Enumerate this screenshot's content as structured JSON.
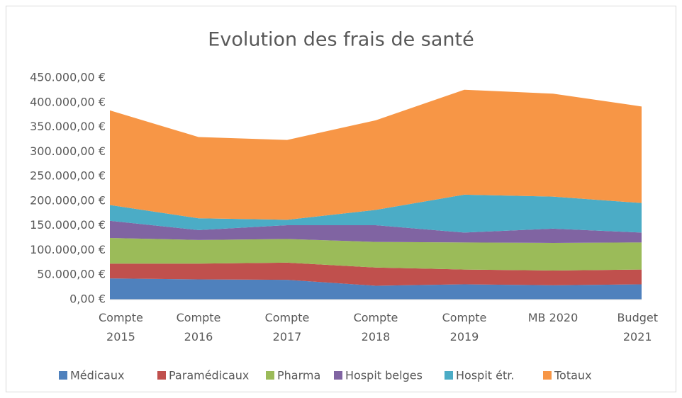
{
  "chart_data": {
    "type": "stacked_area",
    "title": "Evolution des frais de santé",
    "categories": [
      "Compte\n2015",
      "Compte\n2016",
      "Compte\n2017",
      "Compte\n2018",
      "Compte\n2019",
      "MB 2020",
      "Budget\n2021"
    ],
    "series": [
      {
        "name": "Médicaux",
        "color": "#4f81bd",
        "values": [
          43000,
          41000,
          40000,
          28000,
          31000,
          29000,
          31000
        ]
      },
      {
        "name": "Paramédicaux",
        "color": "#c0504d",
        "values": [
          30000,
          32000,
          35000,
          37000,
          30000,
          30000,
          30000
        ]
      },
      {
        "name": "Pharma",
        "color": "#9bbb59",
        "values": [
          52000,
          48000,
          48000,
          52000,
          55000,
          56000,
          55000
        ]
      },
      {
        "name": "Hospit belges",
        "color": "#8064a2",
        "values": [
          35000,
          20000,
          28000,
          34000,
          20000,
          29000,
          20000
        ]
      },
      {
        "name": "Hospit étr.",
        "color": "#4bacc6",
        "values": [
          32000,
          24000,
          11000,
          31000,
          77000,
          65000,
          60000
        ]
      },
      {
        "name": "Totaux",
        "color": "#f79646",
        "values": [
          192000,
          165000,
          162000,
          182000,
          213000,
          209000,
          196000
        ]
      }
    ],
    "ylim": [
      0,
      450000
    ],
    "yticks": [
      {
        "value": 0,
        "label": "0,00 €"
      },
      {
        "value": 50000,
        "label": "50.000,00 €"
      },
      {
        "value": 100000,
        "label": "100.000,00 €"
      },
      {
        "value": 150000,
        "label": "150.000,00 €"
      },
      {
        "value": 200000,
        "label": "200.000,00 €"
      },
      {
        "value": 250000,
        "label": "250.000,00 €"
      },
      {
        "value": 300000,
        "label": "300.000,00 €"
      },
      {
        "value": 350000,
        "label": "350.000,00 €"
      },
      {
        "value": 400000,
        "label": "400.000,00 €"
      },
      {
        "value": 450000,
        "label": "450.000,00 €"
      }
    ],
    "grid": false,
    "legend": "bottom"
  }
}
